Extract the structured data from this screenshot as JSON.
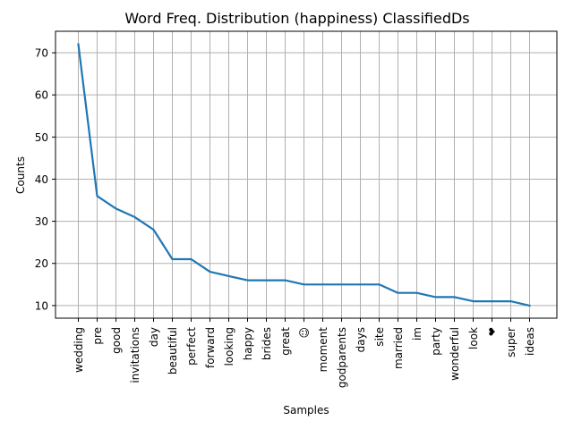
{
  "chart_data": {
    "type": "line",
    "title": "Word Freq. Distribution (happiness) ClassifiedDs",
    "xlabel": "Samples",
    "ylabel": "Counts",
    "categories": [
      "wedding",
      "pre",
      "good",
      "invitations",
      "day",
      "beautiful",
      "perfect",
      "forward",
      "looking",
      "happy",
      "brides",
      "great",
      "☺",
      "moment",
      "godparents",
      "days",
      "site",
      "married",
      "im",
      "party",
      "wonderful",
      "look",
      "❤",
      "super",
      "ideas"
    ],
    "series": [
      {
        "values": [
          72,
          36,
          33,
          31,
          28,
          21,
          21,
          18,
          17,
          16,
          16,
          16,
          15,
          15,
          15,
          15,
          15,
          13,
          13,
          12,
          12,
          11,
          11,
          11,
          10
        ]
      }
    ],
    "yticks": [
      10,
      20,
      30,
      40,
      50,
      60,
      70
    ],
    "ylim": [
      7,
      75.1
    ],
    "grid": true,
    "line_color": "#1f77b4"
  }
}
